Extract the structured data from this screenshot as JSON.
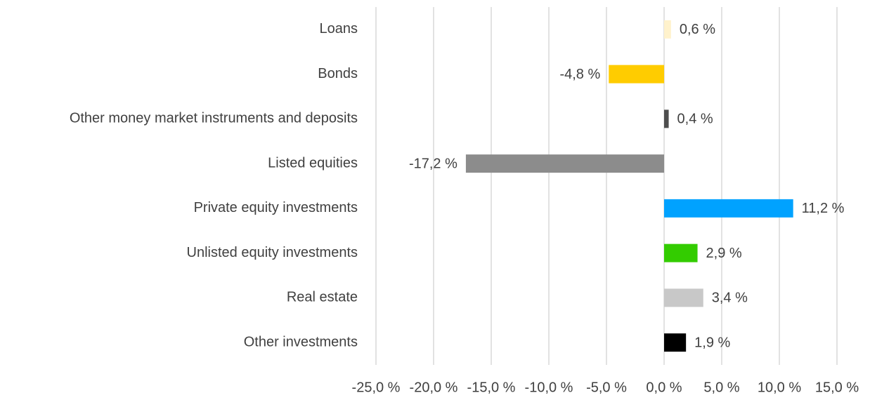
{
  "chart_data": {
    "type": "hbar",
    "categories": [
      "Loans",
      "Bonds",
      "Other money market instruments and deposits",
      "Listed equities",
      "Private equity investments",
      "Unlisted equity investments",
      "Real estate",
      "Other investments"
    ],
    "values": [
      0.6,
      -4.8,
      0.4,
      -17.2,
      11.2,
      2.9,
      3.4,
      1.9
    ],
    "value_labels": [
      "0,6 %",
      "-4,8 %",
      "0,4 %",
      "-17,2 %",
      "11,2 %",
      "2,9 %",
      "3,4 %",
      "1,9 %"
    ],
    "colors": [
      "#fff2cc",
      "#ffcc00",
      "#4d4d4d",
      "#8c8c8c",
      "#00a2ff",
      "#33cc00",
      "#c8c8c8",
      "#000000"
    ],
    "xlim": [
      -25,
      15
    ],
    "xticks": [
      {
        "value": -25,
        "label": "-25,0 %"
      },
      {
        "value": -20,
        "label": "-20,0 %"
      },
      {
        "value": -15,
        "label": "-15,0 %"
      },
      {
        "value": -10,
        "label": "-10,0 %"
      },
      {
        "value": -5,
        "label": "-5,0 %"
      },
      {
        "value": 0,
        "label": "0,0 %"
      },
      {
        "value": 5,
        "label": "5,0 %"
      },
      {
        "value": 10,
        "label": "10,0 %"
      },
      {
        "value": 15,
        "label": "15,0 %"
      }
    ],
    "grid": true
  }
}
